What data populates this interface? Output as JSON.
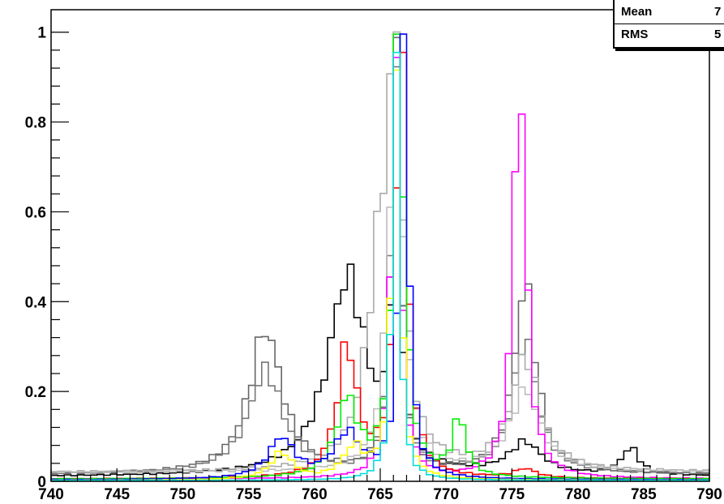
{
  "chart_data": {
    "type": "line",
    "title": "",
    "xlabel": "",
    "ylabel": "",
    "xlim": [
      740,
      790
    ],
    "ylim": [
      0,
      1.05
    ],
    "grid": false,
    "x_ticks": [
      740,
      745,
      750,
      755,
      760,
      765,
      770,
      775,
      780,
      785,
      790
    ],
    "x_tick_labels": [
      "740",
      "745",
      "750",
      "755",
      "760",
      "765",
      "770",
      "775",
      "780",
      "785",
      "790"
    ],
    "y_ticks": [
      0,
      0.2,
      0.4,
      0.6,
      0.8,
      1
    ],
    "y_tick_labels": [
      "0",
      "0.2",
      "0.4",
      "0.6",
      "0.8",
      "1"
    ],
    "bin_width": 0.5,
    "stats": [
      {
        "label": "Mean",
        "value": "7"
      },
      {
        "label": "RMS",
        "value": "5"
      }
    ],
    "series": [
      {
        "color": "#000000",
        "peaks": [
          [
            766.2,
            1.0,
            0.3
          ],
          [
            762.5,
            0.44,
            1.8
          ],
          [
            776,
            0.07,
            1.5
          ],
          [
            784,
            0.06,
            0.8
          ]
        ],
        "base": 0.01
      },
      {
        "color": "#666666",
        "peaks": [
          [
            766.2,
            1.0,
            0.4
          ],
          [
            756.3,
            0.32,
            1.5
          ],
          [
            776,
            0.42,
            1.0
          ]
        ],
        "base": 0.015
      },
      {
        "color": "#777777",
        "peaks": [
          [
            766.2,
            1.0,
            0.4
          ],
          [
            756.3,
            0.23,
            1.6
          ],
          [
            776,
            0.3,
            1.1
          ]
        ],
        "base": 0.015
      },
      {
        "color": "#aaaaaa",
        "peaks": [
          [
            766.2,
            1.0,
            0.5
          ],
          [
            765,
            0.45,
            1.2
          ],
          [
            776,
            0.25,
            1.3
          ]
        ],
        "base": 0.02
      },
      {
        "color": "#bbbbbb",
        "peaks": [
          [
            766.2,
            1.0,
            0.6
          ],
          [
            776,
            0.18,
            1.4
          ]
        ],
        "base": 0.02
      },
      {
        "color": "#ff00ff",
        "peaks": [
          [
            766.2,
            1.0,
            0.4
          ],
          [
            775.6,
            0.93,
            0.55
          ]
        ],
        "base": 0.005
      },
      {
        "color": "#ff0000",
        "peaks": [
          [
            766.6,
            1.0,
            0.5
          ],
          [
            762.5,
            0.29,
            0.9
          ],
          [
            776,
            0.02,
            1.0
          ]
        ],
        "base": 0.005
      },
      {
        "color": "#00ee00",
        "peaks": [
          [
            766.4,
            1.0,
            0.5
          ],
          [
            762.5,
            0.17,
            1.0
          ],
          [
            771,
            0.13,
            0.6
          ]
        ],
        "base": 0.005
      },
      {
        "color": "#0000ff",
        "peaks": [
          [
            766.8,
            1.0,
            0.4
          ],
          [
            757.5,
            0.09,
            1.2
          ],
          [
            762.5,
            0.1,
            1.2
          ]
        ],
        "base": 0.003
      },
      {
        "color": "#ffff00",
        "peaks": [
          [
            766.2,
            1.0,
            0.35
          ],
          [
            757.5,
            0.06,
            1.0
          ],
          [
            763,
            0.07,
            1.0
          ]
        ],
        "base": 0.002
      },
      {
        "color": "#00dddd",
        "peaks": [
          [
            766.2,
            1.0,
            0.3
          ]
        ],
        "base": 0.002
      }
    ]
  }
}
